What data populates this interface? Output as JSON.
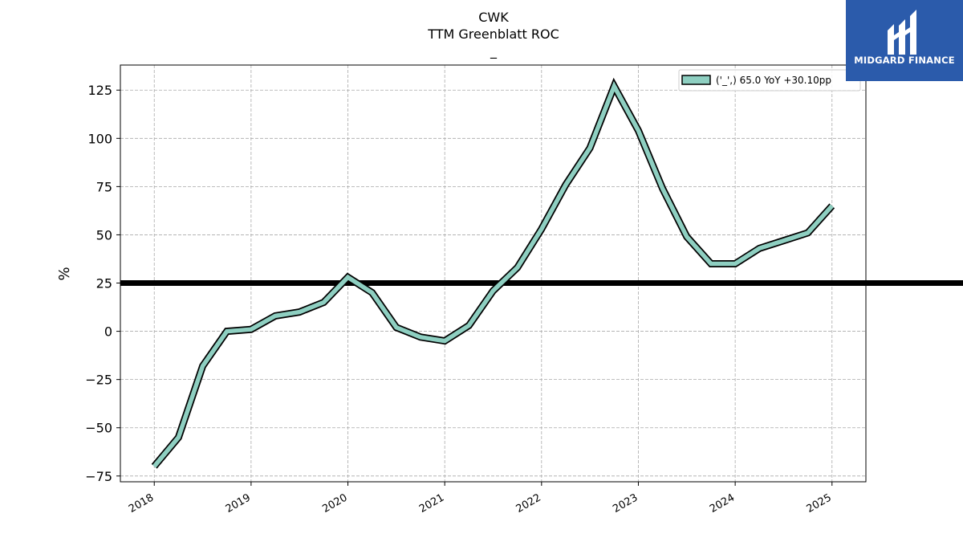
{
  "colors": {
    "series_fill": "#8ecfc1",
    "series_edge": "#000000",
    "threshold": "#000000",
    "grid": "#a9a9a9",
    "logo_bg": "#2b5bab"
  },
  "logo": {
    "text": "MIDGARD FINANCE",
    "icon": "midgard-logo-icon"
  },
  "chart_data": {
    "type": "line",
    "title": "CWK",
    "subtitle": "TTM Greenblatt ROC",
    "subtitle2": "_",
    "xlabel": "",
    "ylabel": "%",
    "ylim": [
      -78,
      138
    ],
    "xlim": [
      2017.65,
      2025.35
    ],
    "yticks": [
      125,
      100,
      75,
      50,
      25,
      0,
      -25,
      -50,
      -75
    ],
    "yticklabels": [
      "125",
      "100",
      "75",
      "50",
      "25",
      "0",
      "−25",
      "−50",
      "−75"
    ],
    "xticks": [
      2018,
      2019,
      2020,
      2021,
      2022,
      2023,
      2024,
      2025
    ],
    "xticklabels": [
      "2018",
      "2019",
      "2020",
      "2021",
      "2022",
      "2023",
      "2024",
      "2025"
    ],
    "grid": true,
    "legend_position": "top-right",
    "threshold": 25,
    "series": [
      {
        "name": "('_',) 65.0 YoY +30.10pp",
        "x": [
          2018.0,
          2018.25,
          2018.5,
          2018.75,
          2019.0,
          2019.25,
          2019.5,
          2019.75,
          2020.0,
          2020.25,
          2020.5,
          2020.75,
          2021.0,
          2021.25,
          2021.5,
          2021.75,
          2022.0,
          2022.25,
          2022.5,
          2022.75,
          2023.0,
          2023.25,
          2023.5,
          2023.75,
          2024.0,
          2024.25,
          2024.5,
          2024.75,
          2025.0
        ],
        "values": [
          -70,
          -55,
          -18,
          0,
          1,
          8,
          10,
          15,
          28,
          20,
          2,
          -3,
          -5,
          3,
          21,
          33,
          53,
          76,
          95,
          127,
          104,
          74,
          49,
          35,
          35,
          43,
          47,
          51,
          65
        ]
      }
    ]
  }
}
